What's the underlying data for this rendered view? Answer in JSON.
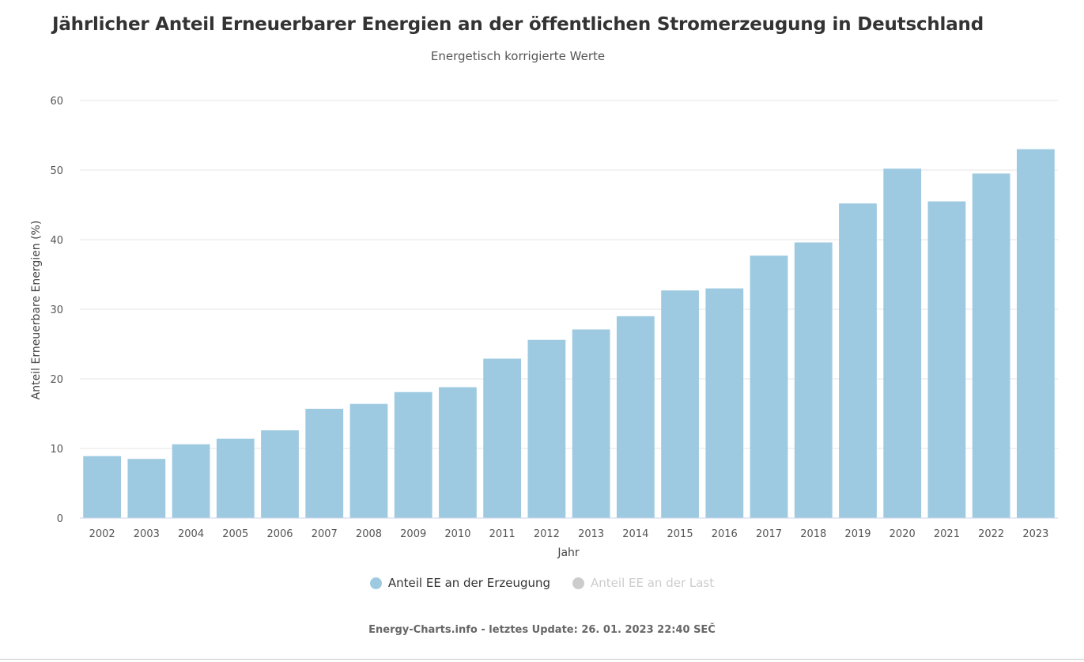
{
  "chart_data": {
    "type": "bar",
    "title": "Jährlicher Anteil Erneuerbarer Energien an der öffentlichen Stromerzeugung in Deutschland",
    "subtitle": "Energetisch korrigierte Werte",
    "xlabel": "Jahr",
    "ylabel": "Anteil Erneuerbare Energien (%)",
    "ylim": [
      0,
      60
    ],
    "yticks": [
      "0",
      "10",
      "20",
      "30",
      "40",
      "50",
      "60"
    ],
    "grid": true,
    "legend_position": "bottom",
    "categories": [
      "2002",
      "2003",
      "2004",
      "2005",
      "2006",
      "2007",
      "2008",
      "2009",
      "2010",
      "2011",
      "2012",
      "2013",
      "2014",
      "2015",
      "2016",
      "2017",
      "2018",
      "2019",
      "2020",
      "2021",
      "2022",
      "2023"
    ],
    "series": [
      {
        "name": "Anteil EE an der Erzeugung",
        "color": "#9ecae1",
        "visible": true,
        "values": [
          8.9,
          8.5,
          10.6,
          11.4,
          12.6,
          15.7,
          16.4,
          18.1,
          18.8,
          22.9,
          25.6,
          27.1,
          29.0,
          32.7,
          33.0,
          37.7,
          39.6,
          45.2,
          50.2,
          45.5,
          49.5,
          53.0
        ]
      },
      {
        "name": "Anteil EE an der Last",
        "color": "#cccccc",
        "visible": false
      }
    ]
  },
  "credits": "Energy-Charts.info - letztes Update: 26. 01. 2023 22:40 SEČ"
}
